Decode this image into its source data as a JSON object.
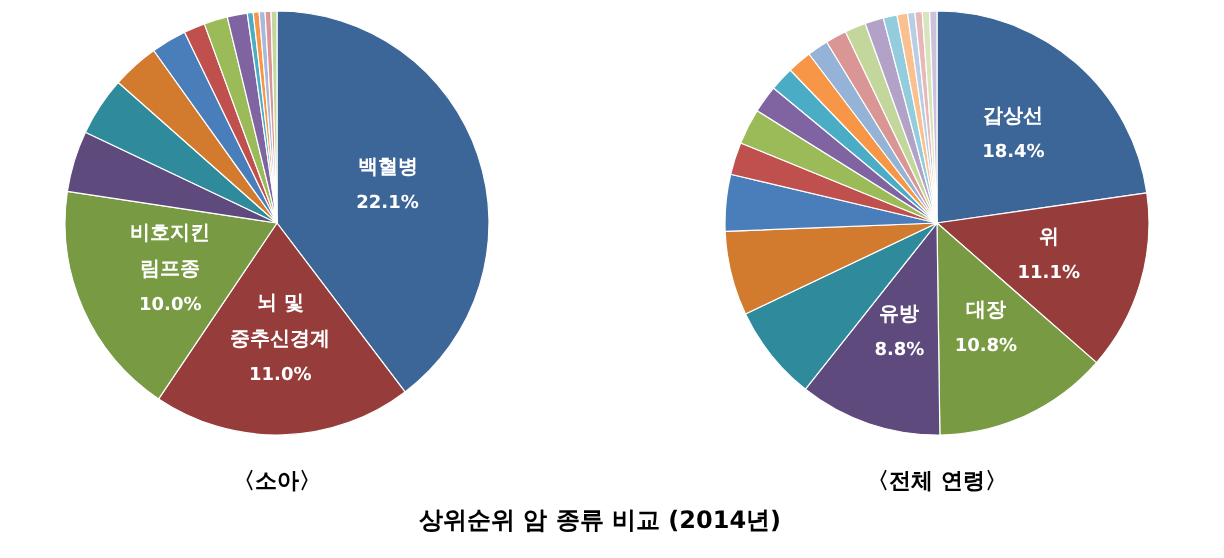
{
  "chart_data": [
    {
      "type": "pie",
      "title": "〈소아〉",
      "annotations": [
        "상위순위 암 종류 비교 (2014년)"
      ],
      "categories": [
        "백혈병",
        "뇌 및\n중추신경계",
        "비호지킨\n림프종",
        null,
        null,
        null,
        null,
        null,
        null,
        null,
        null,
        null,
        null,
        null,
        null
      ],
      "values": [
        22.1,
        11.0,
        10.0,
        2.6,
        2.5,
        2.0,
        1.5,
        0.9,
        1.0,
        0.85,
        0.25,
        0.25,
        0.25,
        0.25,
        0.25
      ],
      "value_labels": [
        "22.1%",
        "11.0%",
        "10.0%",
        null,
        null,
        null,
        null,
        null,
        null,
        null,
        null,
        null,
        null,
        null,
        null
      ],
      "colors": [
        "#3d6698",
        "#963c3a",
        "#789a42",
        "#5e4a7d",
        "#2f8a9c",
        "#d27a2e",
        "#4a7ebb",
        "#c0504d",
        "#9bbb59",
        "#8064a2",
        "#4bacc6",
        "#f79646",
        "#a7b9dc",
        "#d99694",
        "#c3d69b"
      ]
    },
    {
      "type": "pie",
      "title": "〈전체 연령〉",
      "categories": [
        "갑상선",
        "위",
        "대장",
        "유방",
        null,
        null,
        null,
        null,
        null,
        null,
        null,
        null,
        null,
        null,
        null,
        null,
        null,
        null,
        null,
        null,
        null,
        null
      ],
      "values": [
        18.4,
        11.1,
        10.8,
        8.8,
        5.9,
        5.2,
        3.5,
        2.0,
        2.2,
        1.7,
        1.5,
        1.5,
        1.3,
        1.3,
        1.3,
        1.15,
        0.85,
        0.65,
        0.45,
        0.45,
        0.45,
        0.45
      ],
      "value_labels": [
        "18.4%",
        "11.1%",
        "10.8%",
        "8.8%",
        null,
        null,
        null,
        null,
        null,
        null,
        null,
        null,
        null,
        null,
        null,
        null,
        null,
        null,
        null,
        null,
        null,
        null
      ],
      "colors": [
        "#3d6698",
        "#963c3a",
        "#789a42",
        "#5e4a7d",
        "#2f8a9c",
        "#d27a2e",
        "#4a7ebb",
        "#c0504d",
        "#9bbb59",
        "#8064a2",
        "#4bacc6",
        "#f79646",
        "#95b3d7",
        "#d99694",
        "#c3d69b",
        "#b3a2c7",
        "#93cddd",
        "#fac090",
        "#b9cde5",
        "#e6b9b8",
        "#d7e4bd",
        "#ccc1da"
      ]
    }
  ]
}
